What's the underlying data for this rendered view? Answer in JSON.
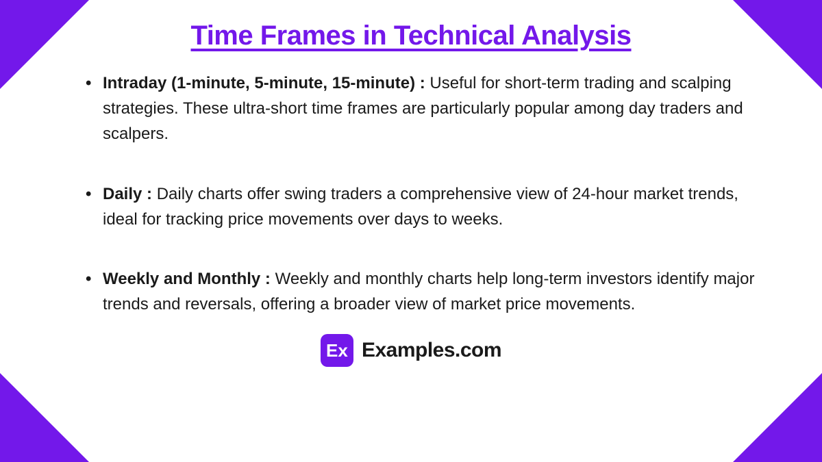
{
  "title": "Time Frames in Technical Analysis",
  "items": [
    {
      "label": "Intraday (1-minute, 5-minute, 15-minute) : ",
      "text": "Useful for short-term trading and scalping strategies. These ultra-short time frames are particularly popular among day traders and scalpers."
    },
    {
      "label": "Daily : ",
      "text": "Daily charts offer swing traders a comprehensive view of 24-hour market trends, ideal for tracking price movements over days to weeks."
    },
    {
      "label": "Weekly and Monthly : ",
      "text": "Weekly and monthly charts help long-term investors identify major trends and reversals, offering a broader view of market price movements."
    }
  ],
  "logo_text": "Ex",
  "footer_text": "Examples.com",
  "colors": {
    "accent": "#7318ea",
    "background": "#ffffff",
    "text": "#1a1a1a"
  }
}
